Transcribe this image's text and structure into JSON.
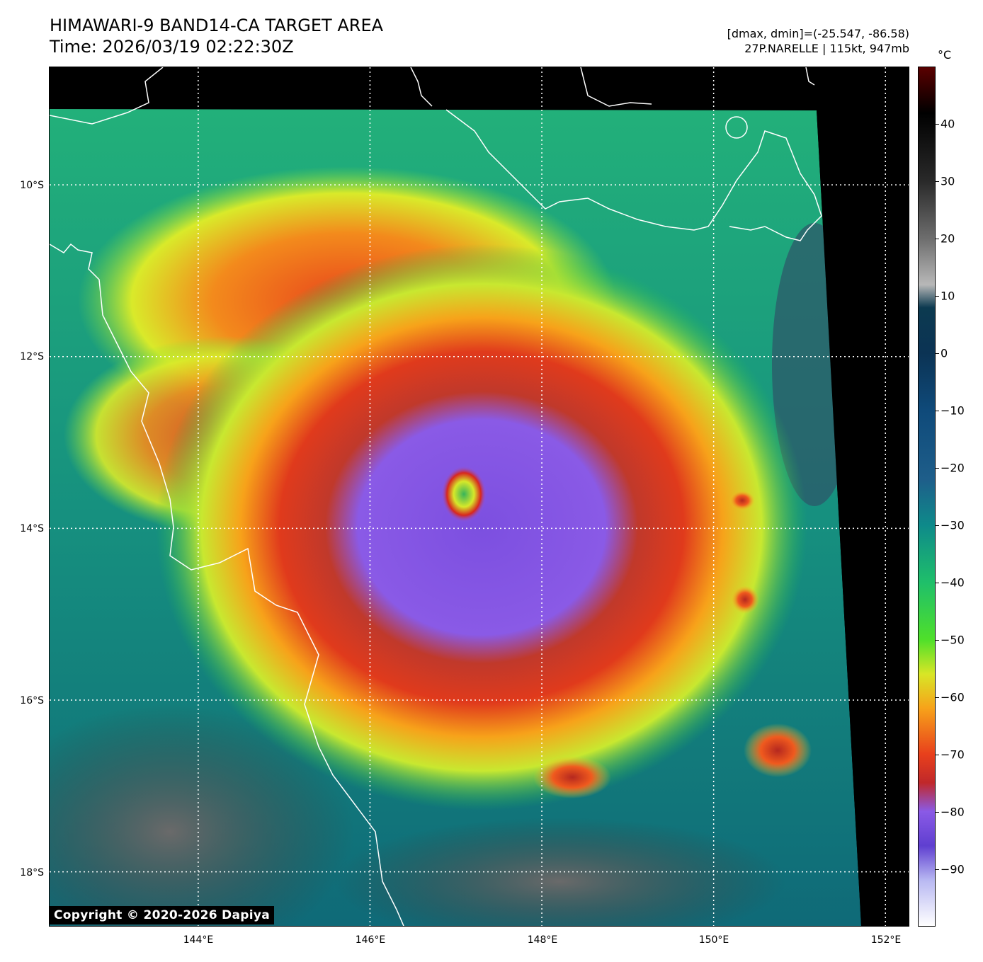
{
  "header": {
    "title_line1": "HIMAWARI-9 BAND14-CA TARGET AREA",
    "title_line2": "Time: 2026/03/19 02:22:30Z",
    "info_line1": "[dmax, dmin]=(-25.547, -86.58)",
    "info_line2": "27P.NARELLE | 115kt, 947mb"
  },
  "map": {
    "lat_labels": [
      "10°S",
      "12°S",
      "14°S",
      "16°S",
      "18°S"
    ],
    "lon_labels": [
      "144°E",
      "146°E",
      "148°E",
      "150°E",
      "152°E"
    ],
    "lat_values": [
      -10,
      -12,
      -14,
      -16,
      -18
    ],
    "lon_values": [
      144,
      146,
      148,
      150,
      152
    ],
    "extent": {
      "lon_min": 142.27,
      "lon_max": 152.27,
      "lat_min": -18.63,
      "lat_max": -8.63
    },
    "eye_center": {
      "lon": 147.1,
      "lat": -13.6
    },
    "grid": true
  },
  "colorbar": {
    "unit": "°C",
    "ticks": [
      "40",
      "30",
      "20",
      "10",
      "0",
      "−10",
      "−20",
      "−30",
      "−40",
      "−50",
      "−60",
      "−70",
      "−80",
      "−90"
    ],
    "tick_values": [
      40,
      30,
      20,
      10,
      0,
      -10,
      -20,
      -30,
      -40,
      -50,
      -60,
      -70,
      -80,
      -90
    ],
    "range": [
      -100,
      50
    ]
  },
  "copyright": "Copyright © 2020-2026 Dapiya"
}
